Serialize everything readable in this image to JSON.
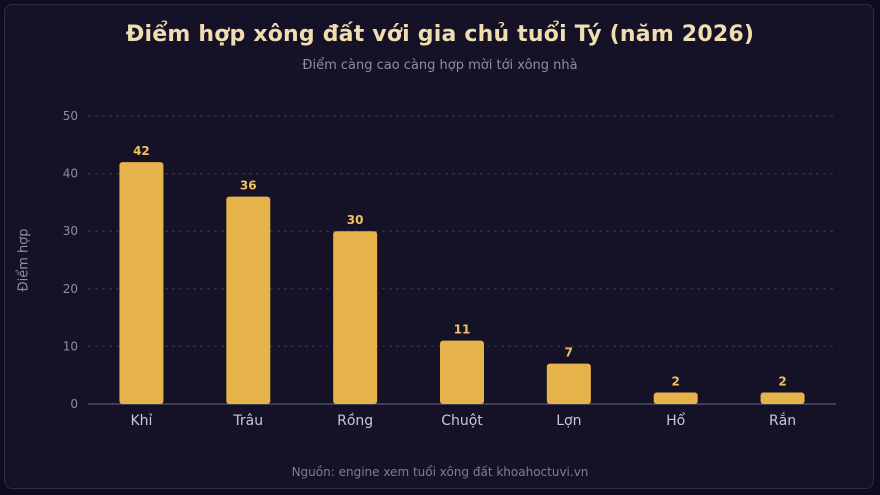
{
  "header": {
    "title": "Điểm hợp xông đất với gia chủ tuổi Tý (năm 2026)",
    "subtitle": "Điểm càng cao càng hợp mời tới xông nhà"
  },
  "footer": {
    "source": "Nguồn: engine xem tuổi xông đất khoahoctuvi.vn"
  },
  "colors": {
    "background": "#151227",
    "bar": "#e6b24a",
    "label": "#f0c25a",
    "grid": "#3a3756",
    "axis_text": "#c9c6dc"
  },
  "chart_data": {
    "type": "bar",
    "title": "Điểm hợp xông đất với gia chủ tuổi Tý (năm 2026)",
    "subtitle": "Điểm càng cao càng hợp mời tới xông nhà",
    "xlabel": "",
    "ylabel": "Điểm hợp",
    "categories": [
      "Khỉ",
      "Trâu",
      "Rồng",
      "Chuột",
      "Lợn",
      "Hổ",
      "Rắn"
    ],
    "values": [
      42,
      36,
      30,
      11,
      7,
      2,
      2
    ],
    "ylim": [
      0,
      50
    ],
    "yticks": [
      0,
      10,
      20,
      30,
      40,
      50
    ],
    "grid": true,
    "legend": "none"
  }
}
